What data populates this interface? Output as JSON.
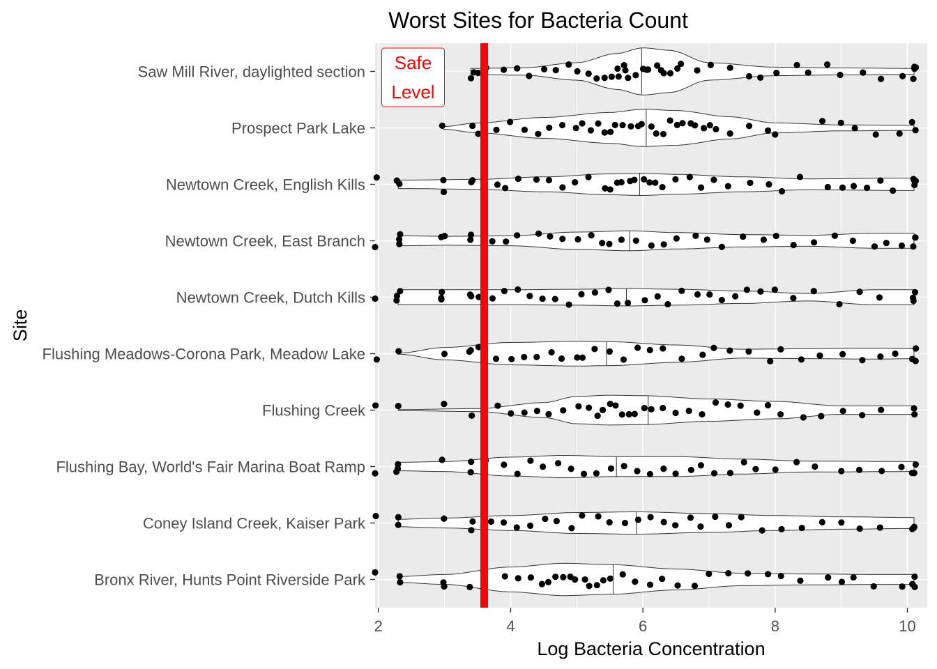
{
  "chart_data": {
    "type": "violin",
    "title": "Worst Sites for Bacteria Count",
    "xlabel": "Log Bacteria Concentration",
    "ylabel": "Site",
    "xlim": [
      1.95,
      10.3
    ],
    "x_ticks": [
      2,
      4,
      6,
      8,
      10
    ],
    "grid": true,
    "panel_background": "#ebebeb",
    "violin_fill": "#ffffff",
    "point_color": "#000000",
    "reference_line": {
      "x": 3.6,
      "color": "#ff0000",
      "label": "Safe Level",
      "label_lines": [
        "Safe",
        "Level"
      ]
    },
    "categories": [
      "Saw Mill River, daylighted section",
      "Prospect Park Lake",
      "Newtown Creek, English Kills",
      "Newtown Creek, East Branch",
      "Newtown Creek, Dutch Kills",
      "Flushing Meadows-Corona Park, Meadow Lake",
      "Flushing Creek",
      "Flushing Bay, World's Fair Marina Boat Ramp",
      "Coney Island Creek, Kaiser Park",
      "Bronx River, Hunts Point Riverside Park"
    ],
    "series": [
      {
        "site": "Saw Mill River, daylighted section",
        "min": 3.4,
        "max": 10.1,
        "median": 5.98,
        "density": [
          [
            3.4,
            0.12
          ],
          [
            4.2,
            0.15
          ],
          [
            5.0,
            0.35
          ],
          [
            5.6,
            0.72
          ],
          [
            6.0,
            0.95
          ],
          [
            6.4,
            0.85
          ],
          [
            7.0,
            0.35
          ],
          [
            8.0,
            0.17
          ],
          [
            9.0,
            0.14
          ],
          [
            10.1,
            0.12
          ]
        ],
        "points": [
          3.4,
          3.45,
          3.5,
          3.6,
          3.9,
          4.1,
          4.3,
          4.5,
          4.7,
          4.9,
          5.0,
          5.2,
          5.3,
          5.4,
          5.5,
          5.6,
          5.65,
          5.7,
          5.75,
          5.8,
          5.9,
          6.0,
          6.05,
          6.1,
          6.2,
          6.25,
          6.3,
          6.4,
          6.5,
          6.6,
          6.8,
          7.0,
          7.3,
          7.6,
          7.8,
          8.0,
          8.3,
          8.5,
          8.8,
          9.0,
          9.3,
          9.6,
          9.9,
          10.1,
          10.1,
          10.1,
          10.1
        ]
      },
      {
        "site": "Prospect Park Lake",
        "min": 2.98,
        "max": 10.1,
        "median": 6.05,
        "density": [
          [
            2.98,
            0.05
          ],
          [
            3.5,
            0.2
          ],
          [
            4.5,
            0.42
          ],
          [
            5.5,
            0.62
          ],
          [
            6.0,
            0.75
          ],
          [
            6.5,
            0.7
          ],
          [
            7.3,
            0.45
          ],
          [
            8.0,
            0.2
          ],
          [
            9.0,
            0.12
          ],
          [
            10.1,
            0.1
          ]
        ],
        "points": [
          2.98,
          3.4,
          3.5,
          3.8,
          4.0,
          4.2,
          4.4,
          4.6,
          4.8,
          5.0,
          5.1,
          5.2,
          5.3,
          5.4,
          5.5,
          5.6,
          5.7,
          5.8,
          5.9,
          6.0,
          6.1,
          6.2,
          6.3,
          6.4,
          6.5,
          6.6,
          6.7,
          6.8,
          6.9,
          7.0,
          7.1,
          7.3,
          7.6,
          7.9,
          8.0,
          8.7,
          9.0,
          9.2,
          9.5,
          9.9,
          10.1,
          10.1
        ]
      },
      {
        "site": "Newtown Creek, English Kills",
        "min": 2.3,
        "max": 10.1,
        "median": 5.95,
        "density": [
          [
            2.3,
            0.17
          ],
          [
            3.5,
            0.2
          ],
          [
            4.5,
            0.3
          ],
          [
            5.5,
            0.42
          ],
          [
            6.0,
            0.45
          ],
          [
            6.5,
            0.4
          ],
          [
            7.5,
            0.3
          ],
          [
            8.5,
            0.22
          ],
          [
            10.1,
            0.25
          ]
        ],
        "points": [
          1.95,
          2.3,
          2.3,
          2.98,
          2.98,
          3.4,
          3.4,
          3.8,
          3.9,
          4.1,
          4.4,
          4.6,
          4.8,
          5.0,
          5.2,
          5.4,
          5.5,
          5.6,
          5.7,
          5.8,
          5.9,
          6.0,
          6.1,
          6.2,
          6.3,
          6.5,
          6.7,
          6.9,
          7.1,
          7.3,
          7.6,
          7.9,
          8.1,
          8.4,
          8.8,
          9.0,
          9.2,
          9.4,
          9.6,
          9.8,
          10.1,
          10.1,
          10.1,
          10.1
        ]
      },
      {
        "site": "Newtown Creek, East Branch",
        "min": 2.3,
        "max": 10.1,
        "median": 5.8,
        "density": [
          [
            2.3,
            0.2
          ],
          [
            3.0,
            0.18
          ],
          [
            4.0,
            0.2
          ],
          [
            5.0,
            0.35
          ],
          [
            5.8,
            0.4
          ],
          [
            6.5,
            0.33
          ],
          [
            7.5,
            0.25
          ],
          [
            8.5,
            0.22
          ],
          [
            9.5,
            0.3
          ],
          [
            10.1,
            0.3
          ]
        ],
        "points": [
          1.95,
          2.3,
          2.3,
          2.3,
          2.98,
          2.98,
          3.4,
          3.4,
          3.7,
          3.9,
          4.1,
          4.4,
          4.6,
          4.8,
          5.0,
          5.2,
          5.4,
          5.5,
          5.7,
          5.9,
          6.1,
          6.3,
          6.5,
          6.8,
          7.0,
          7.2,
          7.5,
          7.8,
          8.0,
          8.3,
          8.6,
          8.9,
          9.2,
          9.5,
          9.7,
          9.9,
          10.1,
          10.1,
          10.1
        ]
      },
      {
        "site": "Newtown Creek, Dutch Kills",
        "min": 2.3,
        "max": 10.1,
        "median": 5.75,
        "density": [
          [
            2.3,
            0.3
          ],
          [
            3.0,
            0.3
          ],
          [
            4.0,
            0.3
          ],
          [
            5.0,
            0.32
          ],
          [
            5.8,
            0.35
          ],
          [
            6.5,
            0.32
          ],
          [
            7.5,
            0.25
          ],
          [
            8.5,
            0.15
          ],
          [
            9.5,
            0.3
          ],
          [
            10.1,
            0.3
          ]
        ],
        "points": [
          1.95,
          2.3,
          2.3,
          2.3,
          2.98,
          2.98,
          2.98,
          3.4,
          3.4,
          3.5,
          3.7,
          3.9,
          4.1,
          4.3,
          4.5,
          4.7,
          4.9,
          5.1,
          5.3,
          5.5,
          5.6,
          5.8,
          6.0,
          6.2,
          6.4,
          6.6,
          6.8,
          7.0,
          7.2,
          7.4,
          7.6,
          7.8,
          8.0,
          8.3,
          8.6,
          9.0,
          9.3,
          9.6,
          10.1,
          10.1,
          10.1
        ]
      },
      {
        "site": "Flushing Meadows-Corona Park, Meadow Lake",
        "min": 2.3,
        "max": 10.1,
        "median": 5.45,
        "density": [
          [
            2.3,
            0.02
          ],
          [
            3.0,
            0.25
          ],
          [
            4.0,
            0.45
          ],
          [
            5.0,
            0.5
          ],
          [
            5.5,
            0.48
          ],
          [
            6.5,
            0.35
          ],
          [
            7.5,
            0.18
          ],
          [
            8.5,
            0.2
          ],
          [
            9.5,
            0.22
          ],
          [
            10.1,
            0.2
          ]
        ],
        "points": [
          1.95,
          2.3,
          2.98,
          3.4,
          3.4,
          3.5,
          3.8,
          4.0,
          4.2,
          4.4,
          4.6,
          4.8,
          5.0,
          5.1,
          5.3,
          5.5,
          5.7,
          5.9,
          6.1,
          6.3,
          6.6,
          6.9,
          7.1,
          7.3,
          7.6,
          7.9,
          8.1,
          8.4,
          8.7,
          9.0,
          9.3,
          9.6,
          9.8,
          10.1,
          10.1,
          10.1
        ]
      },
      {
        "site": "Flushing Creek",
        "min": 2.3,
        "max": 10.1,
        "median": 6.08,
        "density": [
          [
            2.3,
            0.02
          ],
          [
            3.5,
            0.06
          ],
          [
            4.5,
            0.3
          ],
          [
            5.0,
            0.55
          ],
          [
            5.5,
            0.6
          ],
          [
            6.0,
            0.58
          ],
          [
            7.0,
            0.45
          ],
          [
            8.0,
            0.35
          ],
          [
            9.0,
            0.17
          ],
          [
            10.1,
            0.17
          ]
        ],
        "points": [
          1.95,
          2.3,
          2.98,
          3.4,
          3.8,
          4.0,
          4.2,
          4.4,
          4.6,
          4.8,
          5.0,
          5.2,
          5.3,
          5.4,
          5.5,
          5.6,
          5.7,
          5.8,
          5.9,
          6.0,
          6.1,
          6.3,
          6.5,
          6.7,
          6.9,
          7.1,
          7.3,
          7.5,
          7.7,
          7.9,
          8.1,
          8.4,
          8.7,
          9.0,
          9.3,
          9.6,
          10.1,
          10.1
        ]
      },
      {
        "site": "Flushing Bay, World's Fair Marina Boat Ramp",
        "min": 2.3,
        "max": 10.1,
        "median": 5.6,
        "density": [
          [
            2.3,
            0.17
          ],
          [
            3.0,
            0.2
          ],
          [
            4.0,
            0.38
          ],
          [
            4.8,
            0.45
          ],
          [
            5.6,
            0.4
          ],
          [
            6.5,
            0.4
          ],
          [
            7.5,
            0.3
          ],
          [
            8.5,
            0.22
          ],
          [
            10.1,
            0.2
          ]
        ],
        "points": [
          1.95,
          2.3,
          2.3,
          2.3,
          2.98,
          3.4,
          3.4,
          3.6,
          3.9,
          4.1,
          4.3,
          4.5,
          4.7,
          4.9,
          5.1,
          5.3,
          5.5,
          5.7,
          5.9,
          6.1,
          6.3,
          6.5,
          6.7,
          6.9,
          7.1,
          7.3,
          7.5,
          7.7,
          8.0,
          8.3,
          8.6,
          9.0,
          9.3,
          9.6,
          9.9,
          10.1,
          10.1,
          10.1
        ]
      },
      {
        "site": "Coney Island Creek, Kaiser Park",
        "min": 2.3,
        "max": 10.1,
        "median": 5.9,
        "density": [
          [
            2.3,
            0.15
          ],
          [
            3.0,
            0.2
          ],
          [
            4.0,
            0.3
          ],
          [
            5.0,
            0.42
          ],
          [
            5.9,
            0.45
          ],
          [
            7.0,
            0.38
          ],
          [
            8.0,
            0.3
          ],
          [
            9.0,
            0.25
          ],
          [
            10.1,
            0.22
          ]
        ],
        "points": [
          1.95,
          2.3,
          2.3,
          2.98,
          3.4,
          3.4,
          3.7,
          3.9,
          4.1,
          4.3,
          4.5,
          4.7,
          4.9,
          5.1,
          5.3,
          5.5,
          5.7,
          5.9,
          6.1,
          6.3,
          6.5,
          6.7,
          6.9,
          7.1,
          7.3,
          7.5,
          7.8,
          8.1,
          8.4,
          8.7,
          9.0,
          9.3,
          9.6,
          10.1,
          10.1,
          10.1
        ]
      },
      {
        "site": "Bronx River, Hunts Point Riverside Park",
        "min": 2.3,
        "max": 10.1,
        "median": 5.55,
        "density": [
          [
            2.3,
            0.12
          ],
          [
            3.0,
            0.2
          ],
          [
            4.0,
            0.5
          ],
          [
            4.8,
            0.65
          ],
          [
            5.5,
            0.6
          ],
          [
            6.5,
            0.42
          ],
          [
            7.5,
            0.25
          ],
          [
            8.5,
            0.22
          ],
          [
            9.5,
            0.2
          ],
          [
            10.1,
            0.2
          ]
        ],
        "points": [
          1.95,
          2.3,
          2.3,
          2.98,
          2.98,
          3.4,
          3.9,
          4.1,
          4.3,
          4.5,
          4.6,
          4.7,
          4.8,
          4.9,
          5.0,
          5.1,
          5.2,
          5.3,
          5.4,
          5.5,
          5.7,
          5.9,
          6.1,
          6.3,
          6.5,
          6.8,
          7.0,
          7.3,
          7.6,
          7.9,
          8.1,
          8.4,
          8.8,
          9.0,
          9.2,
          9.5,
          9.9,
          10.1,
          10.1,
          10.1
        ]
      }
    ]
  }
}
